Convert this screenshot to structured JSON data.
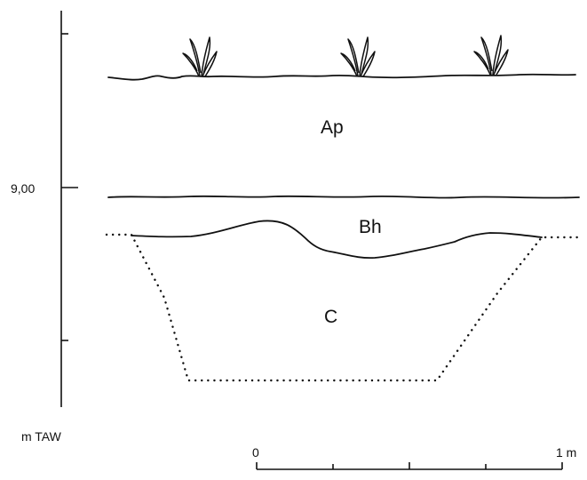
{
  "axis": {
    "elevation_label": "9,00",
    "unit_label": "m TAW"
  },
  "horizons": {
    "ap": "Ap",
    "bh": "Bh",
    "c": "C"
  },
  "scale": {
    "start": "0",
    "end": "1 m"
  }
}
